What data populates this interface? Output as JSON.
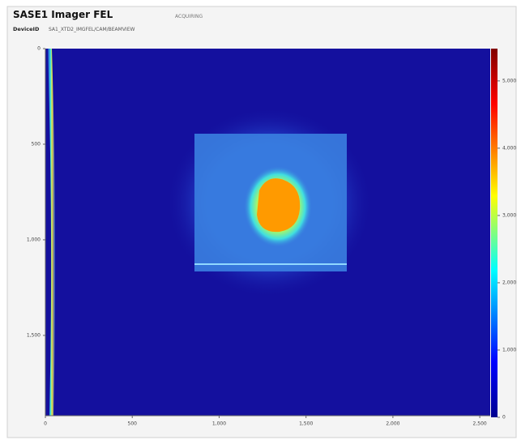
{
  "header": {
    "title": "SASE1 Imager FEL",
    "status": "ACQUIRING",
    "device_label": "DeviceID",
    "device_id": "SA1_XTD2_IMGFEL/CAM/BEAMVIEW"
  },
  "chart_data": {
    "type": "image",
    "xlim": [
      0,
      2560
    ],
    "ylim": [
      0,
      1920
    ],
    "xticks": [
      0,
      500,
      {
        "value": 1000,
        "label": "1,000"
      },
      {
        "value": 1500,
        "label": "1,500"
      },
      {
        "value": 2000,
        "label": "2,000"
      },
      {
        "value": 2500,
        "label": "2,500"
      }
    ],
    "yticks": [
      0,
      500,
      {
        "value": 1000,
        "label": "1,000"
      },
      {
        "value": 1500,
        "label": "1,500"
      }
    ],
    "clim": [
      0,
      5480
    ],
    "cticks": [
      0,
      {
        "value": 1000,
        "label": "1,000"
      },
      {
        "value": 2000,
        "label": "2,000"
      },
      {
        "value": 3000,
        "label": "3,000"
      },
      {
        "value": 4000,
        "label": "4,000"
      },
      {
        "value": 5000,
        "label": "5,000"
      }
    ]
  }
}
